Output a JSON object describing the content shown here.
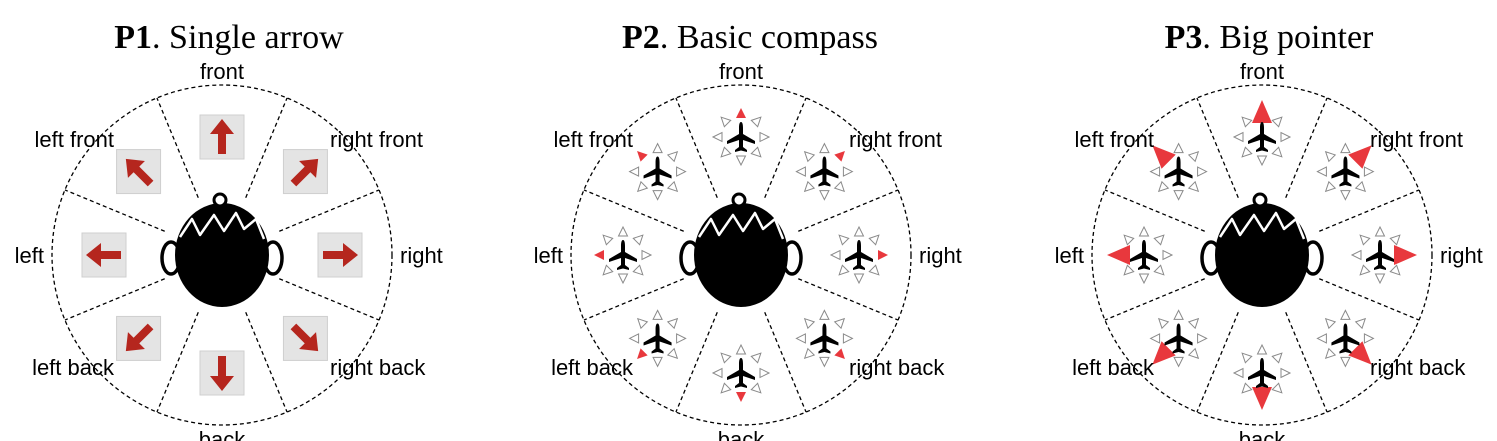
{
  "panels": [
    {
      "id": "p1",
      "prefix": "P1",
      "title": ". Single arrow",
      "style": "arrow"
    },
    {
      "id": "p2",
      "prefix": "P2",
      "title": ". Basic compass",
      "style": "compass"
    },
    {
      "id": "p3",
      "prefix": "P3",
      "title": ". Big pointer",
      "style": "pointer"
    }
  ],
  "directions": [
    {
      "key": "front",
      "label": "front",
      "angle": 0
    },
    {
      "key": "right-front",
      "label": "right front",
      "angle": 45
    },
    {
      "key": "right",
      "label": "right",
      "angle": 90
    },
    {
      "key": "right-back",
      "label": "right back",
      "angle": 135
    },
    {
      "key": "back",
      "label": "back",
      "angle": 180
    },
    {
      "key": "left-back",
      "label": "left back",
      "angle": 225
    },
    {
      "key": "left",
      "label": "left",
      "angle": 270
    },
    {
      "key": "left-front",
      "label": "left front",
      "angle": 315
    }
  ],
  "colors": {
    "arrow": "#b5261e",
    "arrow_box": "#e4e4e4",
    "pointer_red": "#e8383d",
    "head": "#000000",
    "plane": "#000000",
    "outline": "#000000"
  },
  "icons": [
    "head-icon",
    "arrow-icon",
    "airplane-icon",
    "compass-triangle-icon"
  ]
}
